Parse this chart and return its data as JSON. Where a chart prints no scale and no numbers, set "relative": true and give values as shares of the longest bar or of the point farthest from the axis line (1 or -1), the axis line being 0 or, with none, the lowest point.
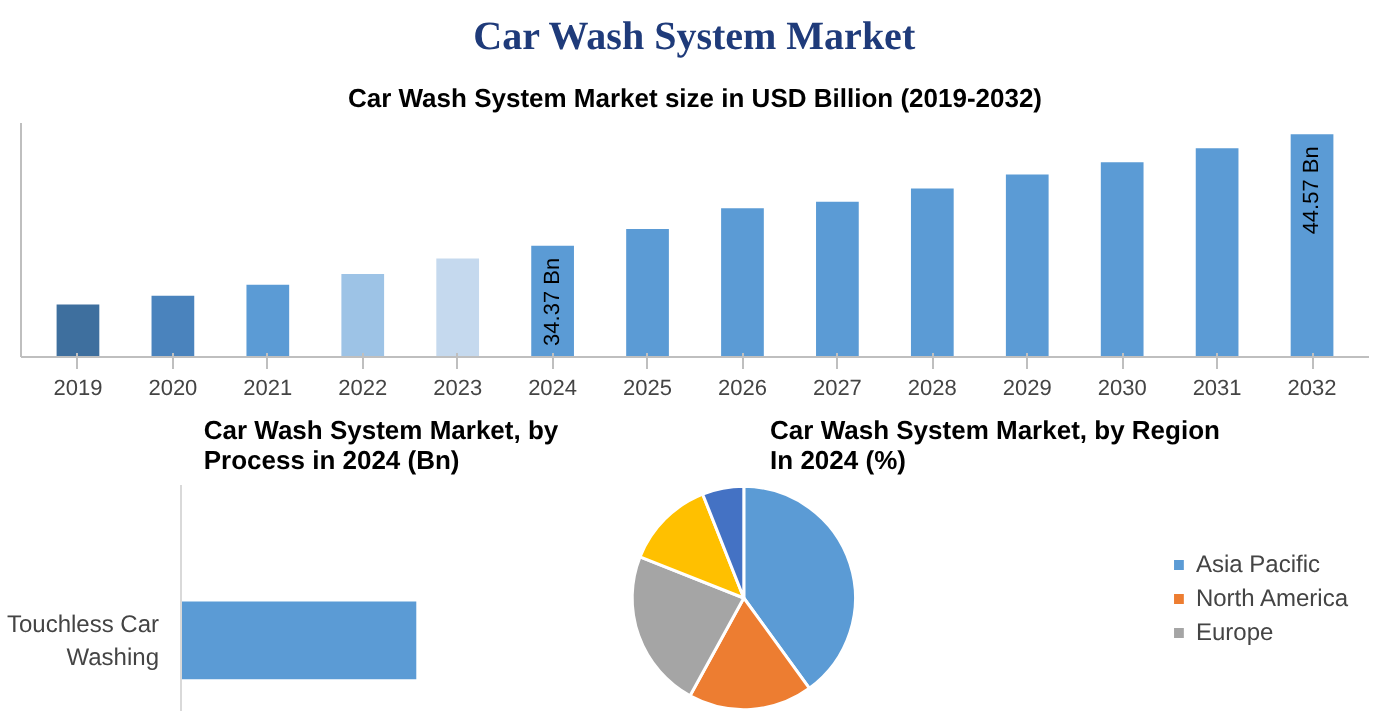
{
  "chart_data": [
    {
      "type": "bar",
      "title": "Car Wash System Market",
      "subtitle": "Car Wash System Market size in USD Billion (2019-2032)",
      "categories": [
        "2019",
        "2020",
        "2021",
        "2022",
        "2023",
        "2024",
        "2025",
        "2026",
        "2027",
        "2028",
        "2029",
        "2030",
        "2031",
        "2032"
      ],
      "values": [
        29.0,
        29.8,
        30.8,
        31.8,
        33.2,
        34.37,
        35.9,
        37.8,
        38.4,
        39.6,
        40.9,
        42.0,
        43.3,
        44.57
      ],
      "colors": [
        "#3e6f9e",
        "#4a83bd",
        "#5b9bd5",
        "#9dc3e6",
        "#c5d9ee",
        "#5b9bd5",
        "#5b9bd5",
        "#5b9bd5",
        "#5b9bd5",
        "#5b9bd5",
        "#5b9bd5",
        "#5b9bd5",
        "#5b9bd5",
        "#5b9bd5"
      ],
      "value_labels": [
        null,
        null,
        null,
        null,
        null,
        "34.37 Bn",
        null,
        null,
        null,
        null,
        null,
        null,
        null,
        "44.57 Bn"
      ],
      "ylim": [
        24.2,
        45.6
      ],
      "tick_labels": "x"
    },
    {
      "type": "bar",
      "orientation": "horizontal",
      "title": "Car Wash System Market, by Process in 2024 (Bn)",
      "categories": [
        "Touchless Car Washing"
      ],
      "values": [
        1
      ],
      "relative": true,
      "color": "#5b9bd5"
    },
    {
      "type": "pie",
      "title": "Car Wash System Market, by Region In 2024 (%)",
      "categories": [
        "Asia Pacific",
        "North America",
        "Europe",
        null,
        null
      ],
      "values": [
        40,
        18,
        23,
        13,
        6
      ],
      "colors": [
        "#5b9bd5",
        "#ed7d31",
        "#a5a5a5",
        "#ffc000",
        "#4472c4"
      ],
      "legend": "right"
    }
  ]
}
